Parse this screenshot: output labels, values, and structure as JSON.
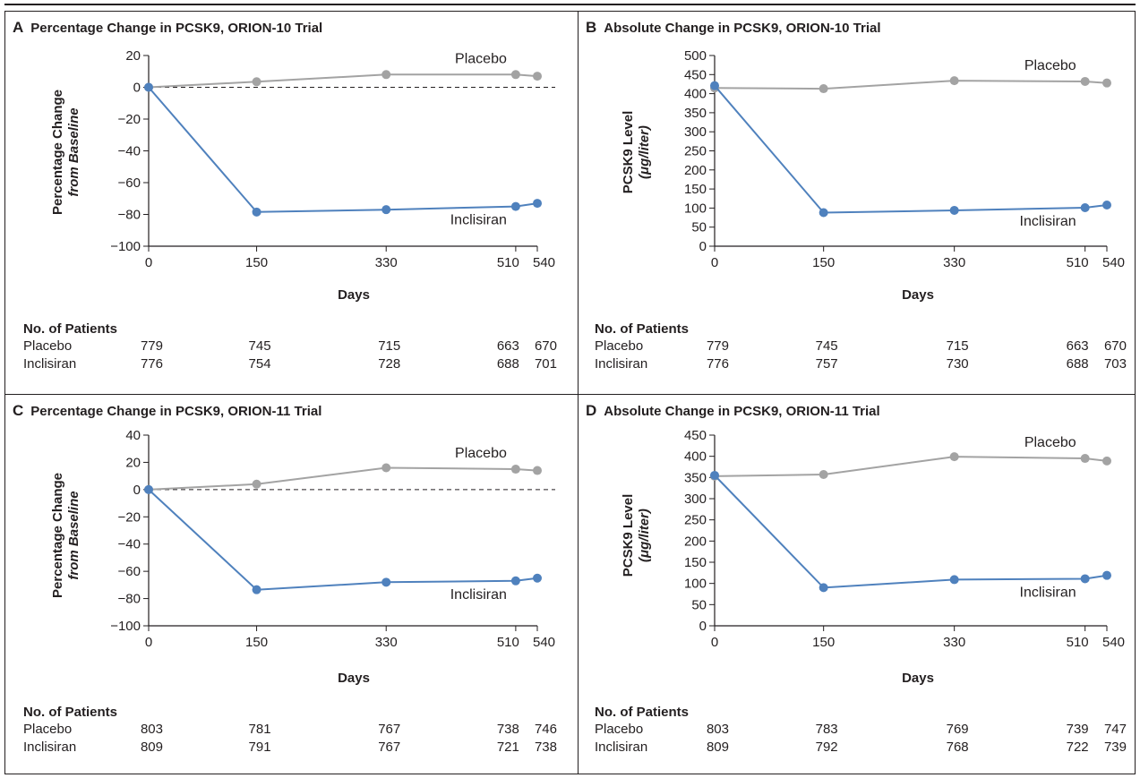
{
  "x_axis_label": "Days",
  "patients_header": "No. of Patients",
  "chart_data": [
    {
      "id": "A",
      "type": "line",
      "letter": "A",
      "title": "Percentage Change in PCSK9, ORION-10 Trial",
      "ylabel_line1": "Percentage Change",
      "ylabel_line2": "from Baseline",
      "ylabel_unit": "",
      "ylim": [
        -100,
        20
      ],
      "yticks": [
        20,
        0,
        -20,
        -40,
        -60,
        -80,
        -100
      ],
      "ytick_labels": [
        "20",
        "0",
        "−20",
        "−40",
        "−60",
        "−80",
        "−100"
      ],
      "xticks": [
        0,
        150,
        330,
        510,
        540
      ],
      "xlim": [
        0,
        540
      ],
      "zero_line": true,
      "series": [
        {
          "name": "Placebo",
          "color": "#a3a3a3",
          "x": [
            0,
            150,
            330,
            510,
            540
          ],
          "values": [
            0,
            3.5,
            8,
            8,
            7
          ]
        },
        {
          "name": "Inclisiran",
          "color": "#4f81bd",
          "x": [
            0,
            150,
            330,
            510,
            540
          ],
          "values": [
            0,
            -78.5,
            -77,
            -75,
            -73
          ]
        }
      ],
      "patients": [
        {
          "label": "Placebo",
          "counts": [
            "779",
            "745",
            "715",
            "663",
            "670"
          ]
        },
        {
          "label": "Inclisiran",
          "counts": [
            "776",
            "754",
            "728",
            "688",
            "701"
          ]
        }
      ]
    },
    {
      "id": "B",
      "type": "line",
      "letter": "B",
      "title": "Absolute Change in PCSK9, ORION-10 Trial",
      "ylabel_line1": "PCSK9 Level",
      "ylabel_line2": "(μg/liter)",
      "ylabel_unit": "",
      "ylim": [
        0,
        500
      ],
      "yticks": [
        500,
        450,
        400,
        350,
        300,
        250,
        200,
        150,
        100,
        50,
        0
      ],
      "ytick_labels": [
        "500",
        "450",
        "400",
        "350",
        "300",
        "250",
        "200",
        "150",
        "100",
        "50",
        "0"
      ],
      "xticks": [
        0,
        150,
        330,
        510,
        540
      ],
      "xlim": [
        0,
        540
      ],
      "zero_line": false,
      "series": [
        {
          "name": "Placebo",
          "color": "#a3a3a3",
          "x": [
            0,
            150,
            330,
            510,
            540
          ],
          "values": [
            415,
            413,
            434,
            432,
            428
          ]
        },
        {
          "name": "Inclisiran",
          "color": "#4f81bd",
          "x": [
            0,
            150,
            330,
            510,
            540
          ],
          "values": [
            421,
            88,
            94,
            101,
            108
          ]
        }
      ],
      "patients": [
        {
          "label": "Placebo",
          "counts": [
            "779",
            "745",
            "715",
            "663",
            "670"
          ]
        },
        {
          "label": "Inclisiran",
          "counts": [
            "776",
            "757",
            "730",
            "688",
            "703"
          ]
        }
      ]
    },
    {
      "id": "C",
      "type": "line",
      "letter": "C",
      "title": "Percentage Change in PCSK9, ORION-11 Trial",
      "ylabel_line1": "Percentage Change",
      "ylabel_line2": "from Baseline",
      "ylabel_unit": "",
      "ylim": [
        -100,
        40
      ],
      "yticks": [
        40,
        20,
        0,
        -20,
        -40,
        -60,
        -80,
        -100
      ],
      "ytick_labels": [
        "40",
        "20",
        "0",
        "−20",
        "−40",
        "−60",
        "−80",
        "−100"
      ],
      "xticks": [
        0,
        150,
        330,
        510,
        540
      ],
      "xlim": [
        0,
        540
      ],
      "zero_line": true,
      "series": [
        {
          "name": "Placebo",
          "color": "#a3a3a3",
          "x": [
            0,
            150,
            330,
            510,
            540
          ],
          "values": [
            0,
            4,
            16,
            15,
            14
          ]
        },
        {
          "name": "Inclisiran",
          "color": "#4f81bd",
          "x": [
            0,
            150,
            330,
            510,
            540
          ],
          "values": [
            0,
            -73.5,
            -68,
            -67,
            -65
          ]
        }
      ],
      "patients": [
        {
          "label": "Placebo",
          "counts": [
            "803",
            "781",
            "767",
            "738",
            "746"
          ]
        },
        {
          "label": "Inclisiran",
          "counts": [
            "809",
            "791",
            "767",
            "721",
            "738"
          ]
        }
      ]
    },
    {
      "id": "D",
      "type": "line",
      "letter": "D",
      "title": "Absolute Change in PCSK9, ORION-11 Trial",
      "ylabel_line1": "PCSK9 Level",
      "ylabel_line2": "(μg/liter)",
      "ylabel_unit": "",
      "ylim": [
        0,
        450
      ],
      "yticks": [
        450,
        400,
        350,
        300,
        250,
        200,
        150,
        100,
        50,
        0
      ],
      "ytick_labels": [
        "450",
        "400",
        "350",
        "300",
        "250",
        "200",
        "150",
        "100",
        "50",
        "0"
      ],
      "xticks": [
        0,
        150,
        330,
        510,
        540
      ],
      "xlim": [
        0,
        540
      ],
      "zero_line": false,
      "series": [
        {
          "name": "Placebo",
          "color": "#a3a3a3",
          "x": [
            0,
            150,
            330,
            510,
            540
          ],
          "values": [
            353,
            357,
            399,
            395,
            389
          ]
        },
        {
          "name": "Inclisiran",
          "color": "#4f81bd",
          "x": [
            0,
            150,
            330,
            510,
            540
          ],
          "values": [
            355,
            90,
            109,
            111,
            119
          ]
        }
      ],
      "patients": [
        {
          "label": "Placebo",
          "counts": [
            "803",
            "783",
            "769",
            "739",
            "747"
          ]
        },
        {
          "label": "Inclisiran",
          "counts": [
            "809",
            "792",
            "768",
            "722",
            "739"
          ]
        }
      ]
    }
  ]
}
